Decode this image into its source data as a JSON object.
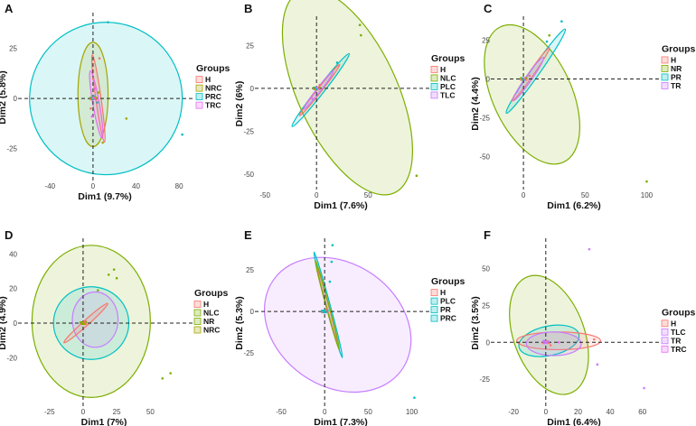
{
  "group_colors": {
    "H": "#f8766d",
    "NRC": "#a3a500",
    "PRC": "#00bfc4",
    "TRC": "#e76bf3",
    "NLC": "#7cae00",
    "PLC": "#00bfc4",
    "TLC": "#c77cff",
    "NR": "#7cae00",
    "PR": "#00bfc4",
    "TR": "#c77cff"
  },
  "chart_data": [
    {
      "type": "scatter",
      "panel": "A",
      "xlabel": "Dim1 (9.7%)",
      "ylabel": "Dim2 (5.8%)",
      "xlim": [
        -68,
        90
      ],
      "ylim": [
        -40,
        41
      ],
      "xticks": [
        -40,
        0,
        40,
        80
      ],
      "yticks": [
        -25,
        0,
        25
      ],
      "legend": {
        "title": "Groups",
        "entries": [
          "H",
          "NRC",
          "PRC",
          "TRC"
        ]
      },
      "ellipses": [
        {
          "group": "PRC",
          "cx": 12,
          "cy": 0,
          "rx": 71,
          "ry": 38,
          "angle": -20,
          "color": "#00bfc4"
        },
        {
          "group": "NRC",
          "cx": 0,
          "cy": 2,
          "rx": 14,
          "ry": 26,
          "angle": 0,
          "color": "#a3a500"
        },
        {
          "group": "H",
          "cx": 5,
          "cy": 0,
          "rx": 2.5,
          "ry": 22,
          "angle": -8,
          "color": "#f8766d"
        },
        {
          "group": "TRC",
          "cx": 3,
          "cy": -3,
          "rx": 3,
          "ry": 17,
          "angle": -10,
          "color": "#e76bf3"
        }
      ],
      "points": [
        {
          "x": 14,
          "y": 38,
          "group": "PRC"
        },
        {
          "x": 83,
          "y": -18,
          "group": "PRC"
        },
        {
          "x": 31,
          "y": -10,
          "group": "NRC"
        },
        {
          "x": 6,
          "y": 20,
          "group": "H"
        },
        {
          "x": 2,
          "y": 5,
          "group": "TRC"
        },
        {
          "x": -2,
          "y": -5,
          "group": "H"
        },
        {
          "x": 9,
          "y": -22,
          "group": "NRC"
        },
        {
          "x": 1,
          "y": 1,
          "group": "PRC"
        },
        {
          "x": 5,
          "y": 3,
          "group": "NRC"
        },
        {
          "x": -1,
          "y": -9,
          "group": "TRC"
        },
        {
          "x": 4,
          "y": -2,
          "group": "PRC"
        },
        {
          "x": 0,
          "y": 10,
          "group": "H"
        }
      ]
    },
    {
      "type": "scatter",
      "panel": "B",
      "xlabel": "Dim1 (7.6%)",
      "ylabel": "Dim2 (6%)",
      "xlim": [
        -58,
        105
      ],
      "ylim": [
        -58,
        40
      ],
      "xticks": [
        -50,
        0,
        50
      ],
      "yticks": [
        -50,
        -25,
        0,
        25
      ],
      "legend": {
        "title": "Groups",
        "entries": [
          "H",
          "NLC",
          "PLC",
          "TLC"
        ]
      },
      "ellipses": [
        {
          "group": "NLC",
          "cx": 30,
          "cy": -2,
          "rx": 48,
          "ry": 65,
          "angle": -25,
          "color": "#7cae00"
        },
        {
          "group": "PLC",
          "cx": 4,
          "cy": -1,
          "rx": 3.5,
          "ry": 27,
          "angle": 38,
          "color": "#00bfc4"
        },
        {
          "group": "H",
          "cx": 3,
          "cy": -1,
          "rx": 2,
          "ry": 19,
          "angle": 38,
          "color": "#f8766d"
        },
        {
          "group": "TLC",
          "cx": 2,
          "cy": -1,
          "rx": 2,
          "ry": 14,
          "angle": 38,
          "color": "#c77cff"
        }
      ],
      "points": [
        {
          "x": 42,
          "y": 37,
          "group": "NLC"
        },
        {
          "x": 43,
          "y": 31,
          "group": "NLC"
        },
        {
          "x": 97,
          "y": -51,
          "group": "NLC"
        },
        {
          "x": 20,
          "y": 15,
          "group": "PLC"
        },
        {
          "x": 3,
          "y": 2,
          "group": "H"
        },
        {
          "x": -4,
          "y": -6,
          "group": "TLC"
        }
      ]
    },
    {
      "type": "scatter",
      "panel": "C",
      "xlabel": "Dim1 (6.2%)",
      "ylabel": "Dim2 (4.4%)",
      "xlim": [
        -25,
        107
      ],
      "ylim": [
        -70,
        38
      ],
      "xticks": [
        0,
        50,
        100
      ],
      "yticks": [
        -50,
        -25,
        0,
        25
      ],
      "legend": {
        "title": "Groups",
        "entries": [
          "H",
          "NR",
          "PR",
          "TR"
        ]
      },
      "ellipses": [
        {
          "group": "NR",
          "cx": 7,
          "cy": -10,
          "rx": 32,
          "ry": 48,
          "angle": -25,
          "color": "#7cae00"
        },
        {
          "group": "PR",
          "cx": 10,
          "cy": 5,
          "rx": 3.5,
          "ry": 33,
          "angle": 35,
          "color": "#00bfc4"
        },
        {
          "group": "H",
          "cx": 6,
          "cy": 3,
          "rx": 2,
          "ry": 21,
          "angle": 35,
          "color": "#f8766d"
        },
        {
          "group": "TR",
          "cx": 4,
          "cy": 0,
          "rx": 2.5,
          "ry": 17,
          "angle": 35,
          "color": "#c77cff"
        }
      ],
      "points": [
        {
          "x": 31,
          "y": 37,
          "group": "PR"
        },
        {
          "x": 21,
          "y": 28,
          "group": "NR"
        },
        {
          "x": 19,
          "y": 24,
          "group": "PR"
        },
        {
          "x": 100,
          "y": -66,
          "group": "NR"
        },
        {
          "x": 5,
          "y": 2,
          "group": "H"
        },
        {
          "x": -5,
          "y": -8,
          "group": "TR"
        }
      ]
    },
    {
      "type": "scatter",
      "panel": "D",
      "xlabel": "Dim1 (7%)",
      "ylabel": "Dim2 (4.9%)",
      "xlim": [
        -47,
        78
      ],
      "ylim": [
        -47,
        47
      ],
      "xticks": [
        -25,
        0,
        25,
        50
      ],
      "yticks": [
        -20,
        0,
        20,
        40
      ],
      "legend": {
        "title": "Groups",
        "entries": [
          "H",
          "NLC",
          "NR",
          "NRC"
        ]
      },
      "ellipses": [
        {
          "group": "NLC",
          "cx": 6,
          "cy": 1,
          "rx": 44,
          "ry": 44,
          "angle": 0,
          "color": "#7cae00"
        },
        {
          "group": "NR",
          "cx": 6,
          "cy": 0,
          "rx": 28,
          "ry": 21,
          "angle": 0,
          "color": "#00bfc4"
        },
        {
          "group": "NRC",
          "cx": 9,
          "cy": 2,
          "rx": 17,
          "ry": 16,
          "angle": 0,
          "color": "#c77cff"
        },
        {
          "group": "H",
          "cx": 2,
          "cy": 0,
          "rx": 2,
          "ry": 17,
          "angle": 48,
          "color": "#f8766d"
        }
      ],
      "points": [
        {
          "x": 23,
          "y": 31,
          "group": "NLC"
        },
        {
          "x": 19,
          "y": 28,
          "group": "NR"
        },
        {
          "x": 25,
          "y": 26,
          "group": "NR"
        },
        {
          "x": 11,
          "y": 19,
          "group": "NLC"
        },
        {
          "x": 59,
          "y": -32,
          "group": "NLC"
        },
        {
          "x": 65,
          "y": -29,
          "group": "NR"
        },
        {
          "x": 2,
          "y": 1,
          "group": "H"
        }
      ]
    },
    {
      "type": "scatter",
      "panel": "E",
      "xlabel": "Dim1 (7.3%)",
      "ylabel": "Dim2 (5.3%)",
      "xlim": [
        -78,
        115
      ],
      "ylim": [
        -56,
        42
      ],
      "xticks": [
        -50,
        0,
        50,
        100
      ],
      "yticks": [
        -25,
        0,
        25
      ],
      "legend": {
        "title": "Groups",
        "entries": [
          "H",
          "PLC",
          "PR",
          "PRC"
        ]
      },
      "ellipses": [
        {
          "group": "PRC",
          "cx": 15,
          "cy": -8,
          "rx": 90,
          "ry": 37,
          "angle": 35,
          "color": "#c77cff"
        },
        {
          "group": "PR",
          "cx": 4,
          "cy": 4,
          "rx": 2.2,
          "ry": 33,
          "angle": -15,
          "color": "#00bfc4"
        },
        {
          "group": "H",
          "cx": 3,
          "cy": 4,
          "rx": 1.3,
          "ry": 23,
          "angle": -15,
          "color": "#f8766d"
        },
        {
          "group": "PLC",
          "cx": 3,
          "cy": 4,
          "rx": 1.8,
          "ry": 28,
          "angle": -15,
          "color": "#7cae00"
        }
      ],
      "points": [
        {
          "x": 9,
          "y": 40,
          "group": "PR"
        },
        {
          "x": 8,
          "y": 30,
          "group": "PR"
        },
        {
          "x": 6,
          "y": 18,
          "group": "PLC"
        },
        {
          "x": 103,
          "y": -52,
          "group": "PRC"
        },
        {
          "x": 2,
          "y": 1,
          "group": "H"
        }
      ]
    },
    {
      "type": "scatter",
      "panel": "F",
      "xlabel": "Dim1 (6.4%)",
      "ylabel": "Dim2 (3.5%)",
      "xlim": [
        -33,
        68
      ],
      "ylim": [
        -42,
        68
      ],
      "xticks": [
        -20,
        0,
        20,
        40,
        60
      ],
      "yticks": [
        -25,
        0,
        25,
        50
      ],
      "legend": {
        "title": "Groups",
        "entries": [
          "H",
          "TLC",
          "TR",
          "TRC"
        ]
      },
      "ellipses": [
        {
          "group": "TLC",
          "cx": 2,
          "cy": 5,
          "rx": 22,
          "ry": 42,
          "angle": -20,
          "color": "#7cae00"
        },
        {
          "group": "TR",
          "cx": 2,
          "cy": 1,
          "rx": 19,
          "ry": 10,
          "angle": -12,
          "color": "#00bfc4"
        },
        {
          "group": "H",
          "cx": 8,
          "cy": 1,
          "rx": 26,
          "ry": 6,
          "angle": 0,
          "color": "#f8766d"
        },
        {
          "group": "TRC",
          "cx": 5,
          "cy": -1,
          "rx": 17,
          "ry": 8,
          "angle": 0,
          "color": "#c77cff"
        }
      ],
      "points": [
        {
          "x": 27,
          "y": 63,
          "group": "TLC"
        },
        {
          "x": 32,
          "y": -15,
          "group": "TLC"
        },
        {
          "x": 61,
          "y": -31,
          "group": "TR"
        },
        {
          "x": 30,
          "y": 2,
          "group": "H"
        },
        {
          "x": 8,
          "y": 0,
          "group": "TRC"
        },
        {
          "x": -1,
          "y": 1,
          "group": "TR"
        },
        {
          "x": 3,
          "y": -2,
          "group": "H"
        }
      ]
    }
  ]
}
